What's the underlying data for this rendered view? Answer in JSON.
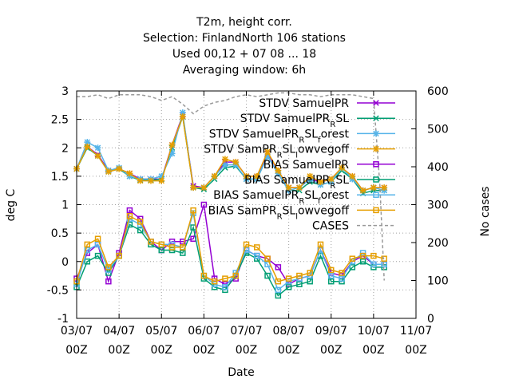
{
  "chart_data": {
    "type": "line",
    "title_lines": [
      "T2m, height corr.",
      "Selection: FinlandNorth    106 stations",
      "Used  00,12  + 07 08 ... 18",
      "Averaging window:  6h"
    ],
    "xlabel": "Date",
    "ylabel": "deg C",
    "y2label": "No cases",
    "x_ticks": [
      {
        "line1": "03/07",
        "line2": "00Z"
      },
      {
        "line1": "04/07",
        "line2": "00Z"
      },
      {
        "line1": "05/07",
        "line2": "00Z"
      },
      {
        "line1": "06/07",
        "line2": "00Z"
      },
      {
        "line1": "07/07",
        "line2": "00Z"
      },
      {
        "line1": "08/07",
        "line2": "00Z"
      },
      {
        "line1": "09/07",
        "line2": "00Z"
      },
      {
        "line1": "10/07",
        "line2": "00Z"
      },
      {
        "line1": "11/07",
        "line2": "00Z"
      }
    ],
    "xlim": [
      0,
      8
    ],
    "ylim": [
      -1,
      3
    ],
    "y_ticks": [
      "-1",
      "-0.5",
      "0",
      "0.5",
      "1",
      "1.5",
      "2",
      "2.5",
      "3"
    ],
    "y2lim": [
      0,
      600
    ],
    "y2_ticks": [
      "0",
      "100",
      "200",
      "300",
      "400",
      "500",
      "600"
    ],
    "grid": true,
    "legend_position": "top-right",
    "x": [
      0.0,
      0.25,
      0.5,
      0.75,
      1.0,
      1.25,
      1.5,
      1.75,
      2.0,
      2.25,
      2.5,
      2.75,
      3.0,
      3.25,
      3.5,
      3.75,
      4.0,
      4.25,
      4.5,
      4.75,
      5.0,
      5.25,
      5.5,
      5.75,
      6.0,
      6.25,
      6.5,
      6.75,
      7.0,
      7.25
    ],
    "series": [
      {
        "name": "STDV SamuelPR",
        "color": "#9400d3",
        "marker": "x",
        "axis": "y",
        "values": [
          1.63,
          2.02,
          1.88,
          1.6,
          1.63,
          1.55,
          1.45,
          1.45,
          1.45,
          2.05,
          2.58,
          1.33,
          1.3,
          1.5,
          1.75,
          1.75,
          1.5,
          1.5,
          1.9,
          1.6,
          1.3,
          1.3,
          1.45,
          1.4,
          1.45,
          1.65,
          1.5,
          1.25,
          1.3,
          1.3
        ]
      },
      {
        "name": "STDV SamuelPR_RSL",
        "color": "#009e73",
        "marker": "x",
        "axis": "y",
        "values": [
          1.63,
          2.0,
          1.86,
          1.58,
          1.63,
          1.5,
          1.43,
          1.43,
          1.45,
          2.0,
          2.55,
          1.3,
          1.27,
          1.45,
          1.65,
          1.68,
          1.45,
          1.45,
          1.85,
          1.55,
          1.25,
          1.25,
          1.4,
          1.35,
          1.4,
          1.6,
          1.45,
          1.2,
          1.25,
          1.25
        ]
      },
      {
        "name": "STDV SamuelPR_RSL_forest",
        "color": "#56b4e9",
        "marker": "star",
        "axis": "y",
        "values": [
          1.63,
          2.1,
          2.0,
          1.6,
          1.65,
          1.5,
          1.45,
          1.45,
          1.5,
          1.9,
          2.62,
          1.3,
          1.3,
          1.5,
          1.7,
          1.7,
          1.45,
          1.45,
          1.85,
          1.55,
          1.25,
          1.3,
          1.45,
          1.35,
          1.4,
          1.65,
          1.45,
          1.25,
          1.3,
          1.25
        ]
      },
      {
        "name": "STDV SamPR_RSL_lowvegoff",
        "color": "#e69f00",
        "marker": "star",
        "axis": "y",
        "values": [
          1.63,
          2.02,
          1.86,
          1.58,
          1.63,
          1.55,
          1.42,
          1.42,
          1.42,
          2.05,
          2.55,
          1.3,
          1.3,
          1.5,
          1.8,
          1.75,
          1.5,
          1.5,
          1.93,
          1.6,
          1.3,
          1.3,
          1.5,
          1.4,
          1.45,
          1.65,
          1.5,
          1.25,
          1.3,
          1.3
        ]
      },
      {
        "name": "BIAS SamuelPR",
        "color": "#9400d3",
        "marker": "square",
        "axis": "y",
        "values": [
          -0.3,
          0.15,
          0.3,
          -0.35,
          0.15,
          0.9,
          0.75,
          0.35,
          0.2,
          0.35,
          0.35,
          0.4,
          1.0,
          -0.3,
          -0.4,
          -0.3,
          0.2,
          0.1,
          0.05,
          -0.1,
          -0.4,
          -0.3,
          -0.25,
          0.2,
          -0.2,
          -0.25,
          0.0,
          0.1,
          -0.05,
          -0.05
        ]
      },
      {
        "name": "BIAS SamuelPR_RSL",
        "color": "#009e73",
        "marker": "square",
        "axis": "y",
        "values": [
          -0.45,
          0.0,
          0.1,
          -0.2,
          0.1,
          0.65,
          0.55,
          0.3,
          0.2,
          0.2,
          0.15,
          0.6,
          -0.3,
          -0.45,
          -0.5,
          -0.25,
          0.15,
          0.05,
          -0.25,
          -0.6,
          -0.45,
          -0.4,
          -0.35,
          0.1,
          -0.35,
          -0.35,
          -0.1,
          0.0,
          -0.1,
          -0.1
        ]
      },
      {
        "name": "BIAS SamuelPR_RSL_forest",
        "color": "#56b4e9",
        "marker": "square",
        "axis": "y",
        "values": [
          -0.4,
          0.2,
          0.3,
          -0.15,
          0.1,
          0.75,
          0.65,
          0.35,
          0.3,
          0.3,
          0.25,
          0.85,
          -0.25,
          -0.4,
          -0.45,
          -0.2,
          0.2,
          0.1,
          -0.05,
          -0.5,
          -0.35,
          -0.3,
          -0.25,
          0.2,
          -0.25,
          -0.3,
          0.0,
          0.15,
          -0.05,
          -0.05
        ]
      },
      {
        "name": "BIAS SamPR_RSL_lowvegoff",
        "color": "#e69f00",
        "marker": "square",
        "axis": "y",
        "values": [
          -0.35,
          0.3,
          0.4,
          -0.1,
          0.1,
          0.8,
          0.7,
          0.35,
          0.3,
          0.25,
          0.25,
          0.9,
          -0.25,
          -0.35,
          -0.3,
          -0.25,
          0.3,
          0.25,
          0.05,
          -0.35,
          -0.3,
          -0.25,
          -0.2,
          0.3,
          -0.15,
          -0.2,
          0.05,
          0.1,
          0.1,
          0.05
        ]
      },
      {
        "name": "CASES",
        "color": "#999999",
        "marker": "none",
        "dash": true,
        "axis": "y2",
        "x": [
          0.0,
          0.25,
          0.5,
          0.75,
          1.0,
          1.25,
          1.5,
          1.75,
          2.0,
          2.25,
          2.5,
          2.75,
          3.0,
          3.25,
          3.5,
          3.75,
          4.0,
          4.25,
          4.5,
          4.75,
          5.0,
          5.25,
          5.5,
          5.75,
          6.0,
          6.25,
          6.5,
          6.75,
          7.0,
          7.15,
          7.25
        ],
        "values": [
          585,
          585,
          590,
          580,
          590,
          590,
          590,
          585,
          575,
          585,
          565,
          540,
          560,
          570,
          575,
          585,
          590,
          585,
          590,
          595,
          595,
          590,
          590,
          585,
          590,
          590,
          590,
          585,
          580,
          350,
          100
        ]
      }
    ],
    "legend_labels": [
      {
        "main": "STDV SamuelPR"
      },
      {
        "main": "STDV SamuelPR",
        "sub1": "R",
        "mid": "SL"
      },
      {
        "main": "STDV SamuelPR",
        "sub1": "R",
        "mid": "SL",
        "sub2": "f",
        "tail": "orest"
      },
      {
        "main": "STDV SamPR",
        "sub1": "R",
        "mid": "SL",
        "sub2": "l",
        "tail": "owvegoff"
      },
      {
        "main": "BIAS SamuelPR"
      },
      {
        "main": "BIAS SamuelPR",
        "sub1": "R",
        "mid": "SL"
      },
      {
        "main": "BIAS SamuelPR",
        "sub1": "R",
        "mid": "SL",
        "sub2": "f",
        "tail": "orest"
      },
      {
        "main": "BIAS SamPR",
        "sub1": "R",
        "mid": "SL",
        "sub2": "l",
        "tail": "owvegoff"
      },
      {
        "main": "CASES"
      }
    ]
  }
}
